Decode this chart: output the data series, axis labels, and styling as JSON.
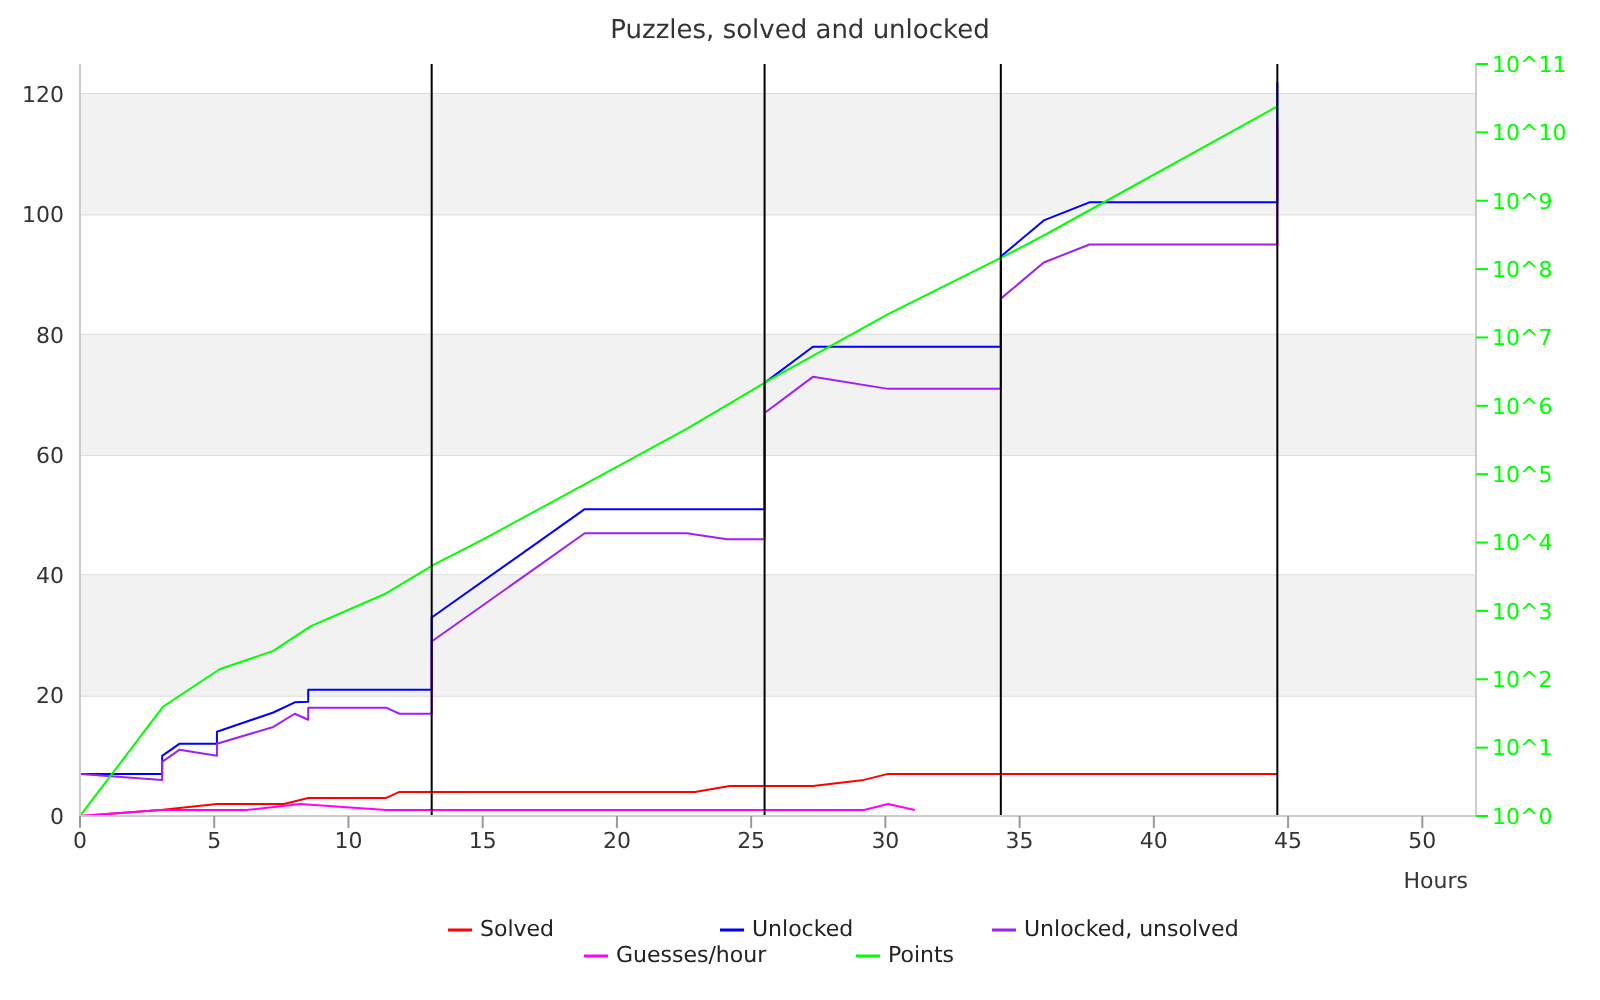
{
  "chart_data": {
    "type": "line",
    "title": "Puzzles, solved and unlocked",
    "xlabel": "Hours",
    "xlim": [
      0,
      52
    ],
    "xticks": [
      0,
      5,
      10,
      15,
      20,
      25,
      30,
      35,
      40,
      45,
      50
    ],
    "ylim": [
      0,
      125
    ],
    "yticks": [
      0,
      20,
      40,
      60,
      80,
      100,
      120
    ],
    "y2lim": [
      1,
      100000000000
    ],
    "y2ticks": [
      {
        "value": 1,
        "label": "10^0"
      },
      {
        "value": 10,
        "label": "10^1"
      },
      {
        "value": 100,
        "label": "10^2"
      },
      {
        "value": 1000,
        "label": "10^3"
      },
      {
        "value": 10000,
        "label": "10^4"
      },
      {
        "value": 100000,
        "label": "10^5"
      },
      {
        "value": 1000000,
        "label": "10^6"
      },
      {
        "value": 10000000,
        "label": "10^7"
      },
      {
        "value": 100000000,
        "label": "10^8"
      },
      {
        "value": 1000000000,
        "label": "10^9"
      },
      {
        "value": 10000000000,
        "label": "10^10"
      },
      {
        "value": 100000000000,
        "label": "10^11"
      }
    ],
    "log": "y2",
    "grid": "y",
    "legend": "bottom",
    "marker": "none",
    "line_style": "solid",
    "bands": [
      {
        "axis": "y",
        "from": 20,
        "to": 40,
        "color": "#f2f2f2"
      },
      {
        "axis": "y",
        "from": 60,
        "to": 80,
        "color": "#f2f2f2"
      },
      {
        "axis": "y",
        "from": 100,
        "to": 120,
        "color": "#f2f2f2"
      }
    ],
    "ref_lines": [
      {
        "axis": "x",
        "value": 13.1,
        "color": "#000000"
      },
      {
        "axis": "x",
        "value": 25.5,
        "color": "#000000"
      },
      {
        "axis": "x",
        "value": 34.3,
        "color": "#000000"
      },
      {
        "axis": "x",
        "value": 44.6,
        "color": "#000000"
      }
    ],
    "series": [
      {
        "name": "Solved",
        "color": "#ff0000",
        "x": [
          0,
          3,
          5.1,
          7.6,
          8.5,
          11.4,
          11.9,
          22.9,
          24.2,
          27.3,
          29.2,
          30.1,
          44.6
        ],
        "values": [
          0,
          1,
          2,
          2,
          3,
          3,
          4,
          4,
          5,
          5,
          6,
          7,
          7
        ]
      },
      {
        "name": "Unlocked",
        "color": "#0000ff",
        "x": [
          0,
          3.06,
          3.06,
          3.7,
          5.1,
          5.1,
          7.2,
          8.0,
          8.5,
          8.5,
          13.1,
          13.1,
          18.8,
          25.5,
          25.5,
          27.3,
          34.3,
          34.3,
          35.9,
          37.6,
          44.6,
          44.6
        ],
        "values": [
          7,
          7,
          10,
          12,
          12,
          14,
          17.2,
          18.9,
          19,
          21,
          21,
          33,
          51,
          51,
          72,
          78,
          78,
          93,
          99,
          102,
          102,
          122
        ]
      },
      {
        "name": "Unlocked, unsolved",
        "color": "#a020f0",
        "x": [
          0,
          3.06,
          3.06,
          3.7,
          5.1,
          5.1,
          7.2,
          8.0,
          8.5,
          8.5,
          11.4,
          11.9,
          13.1,
          13.1,
          16.9,
          18.8,
          22.6,
          24.1,
          25.5,
          25.5,
          27.3,
          30.1,
          34.3,
          34.3,
          35.9,
          37.6,
          44.6,
          44.6
        ],
        "values": [
          7,
          6,
          9,
          11,
          10,
          12,
          14.8,
          17,
          16,
          18,
          18,
          17,
          17,
          29,
          41,
          47,
          47,
          46,
          46,
          67,
          73,
          71,
          71,
          86,
          92,
          95,
          95,
          115
        ]
      },
      {
        "name": "Guesses/hour",
        "color": "#ff00ff",
        "x": [
          0,
          3,
          6.2,
          8.2,
          11.4,
          29.2,
          30.1,
          31.1
        ],
        "values": [
          0,
          1,
          1,
          2,
          1,
          1,
          2,
          1
        ]
      },
      {
        "name": "Points",
        "color": "#00ff00",
        "axis": "y2",
        "x": [
          0,
          3.1,
          5.2,
          7.2,
          8.6,
          11.4,
          13.2,
          15,
          22.6,
          24.4,
          25.6,
          30.1,
          34.5,
          35.9,
          44.6
        ],
        "values": [
          1,
          40,
          140,
          260,
          600,
          1800,
          4800,
          11000,
          460000,
          1200000,
          2300000,
          22000000,
          160000000,
          310000000,
          24000000000
        ]
      }
    ]
  }
}
